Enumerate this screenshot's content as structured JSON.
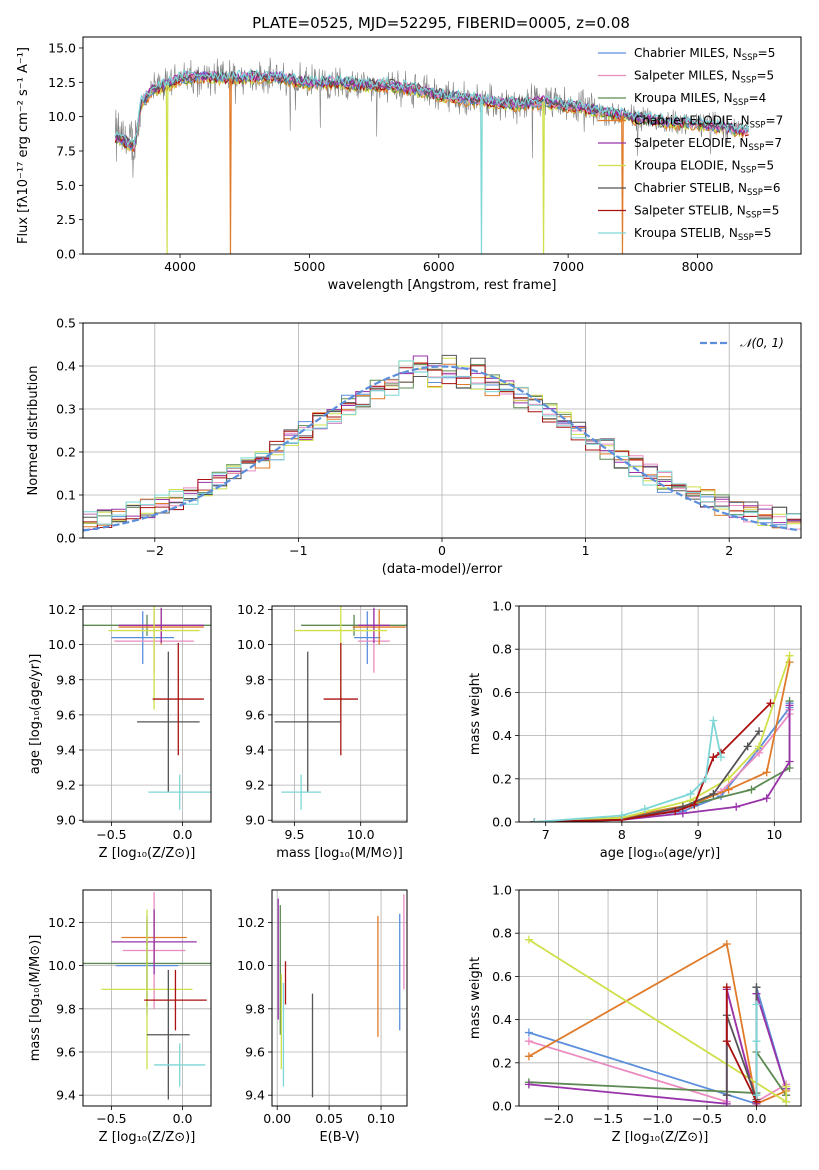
{
  "figure": {
    "title": "PLATE=0525, MJD=52295, FIBERID=0005, z=0.08"
  },
  "models": [
    {
      "name": "Chabrier MILES",
      "nssp": "5",
      "color": "#5b8fdc"
    },
    {
      "name": "Salpeter MILES",
      "nssp": "5",
      "color": "#e98bc0"
    },
    {
      "name": "Kroupa MILES",
      "nssp": "4",
      "color": "#5c8a52"
    },
    {
      "name": "Chabrier ELODIE",
      "nssp": "7",
      "color": "#e07b2a"
    },
    {
      "name": "Salpeter ELODIE",
      "nssp": "7",
      "color": "#9933aa"
    },
    {
      "name": "Kroupa ELODIE",
      "nssp": "5",
      "color": "#cfe04a"
    },
    {
      "name": "Chabrier STELIB",
      "nssp": "6",
      "color": "#555555"
    },
    {
      "name": "Salpeter STELIB",
      "nssp": "5",
      "color": "#aa1111"
    },
    {
      "name": "Kroupa STELIB",
      "nssp": "5",
      "color": "#7ed6d6"
    }
  ],
  "nssp_label": "N",
  "nssp_sub": "SSP",
  "chart_data": [
    {
      "id": "spectrum",
      "type": "line",
      "title": "PLATE=0525, MJD=52295, FIBERID=0005, z=0.08",
      "xlabel": "wavelength [Angstrom, rest frame]",
      "ylabel": "Flux [fλ10⁻¹⁷ erg cm⁻² s⁻¹ A⁻¹]",
      "xlim": [
        3250,
        8800
      ],
      "ylim": [
        0,
        15.8
      ],
      "xticks": [
        4000,
        5000,
        6000,
        7000,
        8000
      ],
      "yticks": [
        0.0,
        2.5,
        5.0,
        7.5,
        10.0,
        12.5,
        15.0
      ],
      "continuum": {
        "x": [
          3500,
          3550,
          3650,
          3700,
          3800,
          3900,
          4000,
          4200,
          4400,
          4600,
          4800,
          5000,
          5200,
          5400,
          5600,
          5800,
          6000,
          6200,
          6400,
          6600,
          6800,
          7000,
          7200,
          7400,
          7600,
          7800,
          8000,
          8200,
          8350
        ],
        "y": [
          8.5,
          8.3,
          7.8,
          11.0,
          12.0,
          12.3,
          12.8,
          12.9,
          12.8,
          12.9,
          12.8,
          12.4,
          12.5,
          12.3,
          12.3,
          12.0,
          11.6,
          11.3,
          11.1,
          10.9,
          11.1,
          10.8,
          10.5,
          10.1,
          9.8,
          9.6,
          9.5,
          9.2,
          9.0
        ]
      },
      "absorption_dips": [
        {
          "x": 3900,
          "y": 0.0
        },
        {
          "x": 4390,
          "y": 0.0
        },
        {
          "x": 6330,
          "y": 0.0
        },
        {
          "x": 6810,
          "y": 0.0
        },
        {
          "x": 7420,
          "y": 0.0
        }
      ]
    },
    {
      "id": "residuals",
      "type": "histogram",
      "xlabel": "(data-model)/error",
      "ylabel": "Normed distribution",
      "xlim": [
        -2.5,
        2.5
      ],
      "ylim": [
        0,
        0.5
      ],
      "xticks": [
        -2,
        -1,
        0,
        1,
        2
      ],
      "yticks": [
        0.0,
        0.1,
        0.2,
        0.3,
        0.4,
        0.5
      ],
      "legend": "𝒩(0, 1)",
      "reference": {
        "name": "𝒩(0, 1)",
        "color": "#5b8fdc",
        "mu": 0,
        "sigma": 1
      },
      "bin_width": 0.1
    },
    {
      "id": "age_vs_Z",
      "type": "errorbar",
      "xlabel": "Z [log₁₀(Z/Z⊙)]",
      "ylabel": "age  [log₁₀(age/yr)]",
      "xlim": [
        -0.7,
        0.2
      ],
      "ylim": [
        8.99,
        10.22
      ],
      "xticks": [
        -0.5,
        0.0
      ],
      "yticks": [
        9.0,
        9.2,
        9.4,
        9.6,
        9.8,
        10.0,
        10.2
      ],
      "points": [
        {
          "model": 0,
          "x": -0.28,
          "y": 10.04,
          "xerr": 0.22,
          "yerr": 0.15
        },
        {
          "model": 1,
          "x": -0.2,
          "y": 10.02,
          "xerr": 0.28,
          "yerr": 0.18
        },
        {
          "model": 2,
          "x": -0.25,
          "y": 10.11,
          "xerr": 0.45,
          "yerr": 0.06
        },
        {
          "model": 3,
          "x": -0.15,
          "y": 10.1,
          "xerr": 0.3,
          "yerr": 0.1
        },
        {
          "model": 4,
          "x": -0.15,
          "y": 10.11,
          "xerr": 0.3,
          "yerr": 0.1
        },
        {
          "model": 5,
          "x": -0.2,
          "y": 10.08,
          "xerr": 0.32,
          "yerr": 0.45
        },
        {
          "model": 6,
          "x": -0.1,
          "y": 9.56,
          "xerr": 0.22,
          "yerr": 0.4
        },
        {
          "model": 7,
          "x": -0.03,
          "y": 9.69,
          "xerr": 0.18,
          "yerr": 0.32
        },
        {
          "model": 8,
          "x": -0.02,
          "y": 9.16,
          "xerr": 0.22,
          "yerr": 0.1
        }
      ]
    },
    {
      "id": "age_vs_mass",
      "type": "errorbar",
      "xlabel": "mass [log₁₀(M/M⊙)]",
      "ylabel": "",
      "xlim": [
        9.33,
        10.35
      ],
      "ylim": [
        8.99,
        10.22
      ],
      "xticks": [
        9.5,
        10.0
      ],
      "yticks": [
        9.0,
        9.2,
        9.4,
        9.6,
        9.8,
        10.0,
        10.2
      ],
      "points": [
        {
          "model": 0,
          "x": 10.05,
          "y": 10.04,
          "xerr": 0.1,
          "yerr": 0.15
        },
        {
          "model": 1,
          "x": 10.1,
          "y": 10.02,
          "xerr": 0.12,
          "yerr": 0.18
        },
        {
          "model": 2,
          "x": 9.95,
          "y": 10.11,
          "xerr": 0.4,
          "yerr": 0.06
        },
        {
          "model": 3,
          "x": 10.14,
          "y": 10.1,
          "xerr": 0.2,
          "yerr": 0.1
        },
        {
          "model": 4,
          "x": 10.1,
          "y": 10.11,
          "xerr": 0.12,
          "yerr": 0.1
        },
        {
          "model": 5,
          "x": 9.85,
          "y": 10.08,
          "xerr": 0.35,
          "yerr": 0.45
        },
        {
          "model": 6,
          "x": 9.6,
          "y": 9.56,
          "xerr": 0.25,
          "yerr": 0.4
        },
        {
          "model": 7,
          "x": 9.85,
          "y": 9.69,
          "xerr": 0.13,
          "yerr": 0.32
        },
        {
          "model": 8,
          "x": 9.55,
          "y": 9.16,
          "xerr": 0.15,
          "yerr": 0.1
        }
      ]
    },
    {
      "id": "weight_vs_age",
      "type": "line",
      "xlabel": "age  [log₁₀(age/yr)]",
      "ylabel": "mass weight",
      "xlim": [
        6.65,
        10.35
      ],
      "ylim": [
        0,
        1.0
      ],
      "xticks": [
        7,
        8,
        9,
        10
      ],
      "yticks": [
        0.0,
        0.2,
        0.4,
        0.6,
        0.8,
        1.0
      ],
      "series": [
        {
          "model": 0,
          "x": [
            6.85,
            8.0,
            8.8,
            9.3,
            9.8,
            10.2,
            10.2
          ],
          "y": [
            0.0,
            0.02,
            0.05,
            0.12,
            0.34,
            0.53,
            0.55
          ]
        },
        {
          "model": 1,
          "x": [
            6.85,
            8.0,
            8.8,
            9.3,
            9.8,
            10.2,
            10.2
          ],
          "y": [
            0.0,
            0.02,
            0.06,
            0.14,
            0.32,
            0.5,
            0.52
          ]
        },
        {
          "model": 2,
          "x": [
            6.85,
            8.0,
            8.9,
            9.7,
            10.2,
            10.2
          ],
          "y": [
            0.0,
            0.02,
            0.08,
            0.15,
            0.25,
            0.56
          ]
        },
        {
          "model": 3,
          "x": [
            6.85,
            8.0,
            8.9,
            9.4,
            9.9,
            10.2
          ],
          "y": [
            0.0,
            0.02,
            0.08,
            0.15,
            0.23,
            0.74
          ]
        },
        {
          "model": 4,
          "x": [
            6.85,
            8.0,
            8.8,
            9.5,
            9.9,
            10.2,
            10.2
          ],
          "y": [
            0.0,
            0.01,
            0.04,
            0.07,
            0.11,
            0.28,
            0.54
          ]
        },
        {
          "model": 5,
          "x": [
            6.85,
            8.0,
            8.9,
            9.4,
            9.8,
            10.2
          ],
          "y": [
            0.0,
            0.02,
            0.1,
            0.2,
            0.35,
            0.77
          ]
        },
        {
          "model": 6,
          "x": [
            6.85,
            8.0,
            8.8,
            9.2,
            9.65,
            9.8
          ],
          "y": [
            0.0,
            0.01,
            0.07,
            0.13,
            0.35,
            0.42
          ]
        },
        {
          "model": 7,
          "x": [
            6.85,
            8.0,
            8.7,
            8.95,
            9.2,
            9.3,
            9.95
          ],
          "y": [
            0.0,
            0.01,
            0.05,
            0.08,
            0.3,
            0.32,
            0.55
          ]
        },
        {
          "model": 8,
          "x": [
            6.85,
            8.0,
            8.3,
            8.9,
            9.1,
            9.2,
            9.3
          ],
          "y": [
            0.0,
            0.03,
            0.06,
            0.13,
            0.2,
            0.47,
            0.3
          ]
        }
      ]
    },
    {
      "id": "mass_vs_Z",
      "type": "errorbar",
      "xlabel": "Z [log₁₀(Z/Z⊙)]",
      "ylabel": "mass [log₁₀(M/M⊙)]",
      "xlim": [
        -0.7,
        0.2
      ],
      "ylim": [
        9.35,
        10.35
      ],
      "xticks": [
        -0.5,
        0.0
      ],
      "yticks": [
        9.4,
        9.6,
        9.8,
        10.0,
        10.2
      ],
      "points": [
        {
          "model": 0,
          "x": -0.25,
          "y": 10.0,
          "xerr": 0.22,
          "yerr": 0.23
        },
        {
          "model": 1,
          "x": -0.2,
          "y": 10.07,
          "xerr": 0.22,
          "yerr": 0.27
        },
        {
          "model": 2,
          "x": -0.25,
          "y": 10.01,
          "xerr": 0.45,
          "yerr": 0.2
        },
        {
          "model": 3,
          "x": -0.2,
          "y": 10.13,
          "xerr": 0.23,
          "yerr": 0.12
        },
        {
          "model": 4,
          "x": -0.2,
          "y": 10.11,
          "xerr": 0.3,
          "yerr": 0.15
        },
        {
          "model": 5,
          "x": -0.25,
          "y": 9.89,
          "xerr": 0.32,
          "yerr": 0.37
        },
        {
          "model": 6,
          "x": -0.1,
          "y": 9.68,
          "xerr": 0.15,
          "yerr": 0.3
        },
        {
          "model": 7,
          "x": -0.05,
          "y": 9.84,
          "xerr": 0.22,
          "yerr": 0.14
        },
        {
          "model": 8,
          "x": -0.02,
          "y": 9.54,
          "xerr": 0.18,
          "yerr": 0.1
        }
      ]
    },
    {
      "id": "mass_vs_ebv",
      "type": "errorbar",
      "xlabel": "E(B-V)",
      "ylabel": "",
      "xlim": [
        -0.005,
        0.125
      ],
      "ylim": [
        9.35,
        10.35
      ],
      "xticks": [
        0.0,
        0.05,
        0.1
      ],
      "yticks": [
        9.4,
        9.6,
        9.8,
        10.0,
        10.2
      ],
      "points": [
        {
          "model": 0,
          "x": 0.118,
          "y": 9.97,
          "xerr": 0.0,
          "yerr": 0.27
        },
        {
          "model": 1,
          "x": 0.122,
          "y": 10.11,
          "xerr": 0.0,
          "yerr": 0.22
        },
        {
          "model": 2,
          "x": 0.003,
          "y": 9.98,
          "xerr": 0.0,
          "yerr": 0.3
        },
        {
          "model": 3,
          "x": 0.097,
          "y": 9.95,
          "xerr": 0.0,
          "yerr": 0.28
        },
        {
          "model": 4,
          "x": 0.001,
          "y": 10.03,
          "xerr": 0.0,
          "yerr": 0.28
        },
        {
          "model": 5,
          "x": 0.004,
          "y": 9.74,
          "xerr": 0.0,
          "yerr": 0.22
        },
        {
          "model": 6,
          "x": 0.034,
          "y": 9.63,
          "xerr": 0.0,
          "yerr": 0.24
        },
        {
          "model": 7,
          "x": 0.008,
          "y": 9.92,
          "xerr": 0.0,
          "yerr": 0.1
        },
        {
          "model": 8,
          "x": 0.006,
          "y": 9.68,
          "xerr": 0.0,
          "yerr": 0.24
        }
      ]
    },
    {
      "id": "weight_vs_Z",
      "type": "line",
      "xlabel": "Z [log₁₀(Z/Z⊙)]",
      "ylabel": "mass weight",
      "xlim": [
        -2.4,
        0.45
      ],
      "ylim": [
        0,
        1.0
      ],
      "xticks": [
        -2.0,
        -1.5,
        -1.0,
        -0.5,
        0.0
      ],
      "yticks": [
        0.0,
        0.2,
        0.4,
        0.6,
        0.8,
        1.0
      ],
      "series": [
        {
          "model": 0,
          "x": [
            -2.3,
            0.0,
            0.0,
            0.3,
            0.3
          ],
          "y": [
            0.34,
            0.01,
            0.55,
            0.08,
            0.02
          ]
        },
        {
          "model": 1,
          "x": [
            -2.3,
            -0.3,
            -0.3,
            0.0,
            0.3,
            0.3
          ],
          "y": [
            0.3,
            0.02,
            0.54,
            0.02,
            0.1,
            0.05
          ]
        },
        {
          "model": 2,
          "x": [
            -2.3,
            0.0,
            0.0,
            0.3
          ],
          "y": [
            0.11,
            0.06,
            0.25,
            0.05
          ]
        },
        {
          "model": 3,
          "x": [
            -2.3,
            -0.3,
            0.0,
            0.3
          ],
          "y": [
            0.23,
            0.75,
            0.01,
            0.07
          ]
        },
        {
          "model": 4,
          "x": [
            -2.3,
            -0.3,
            -0.3,
            0.0,
            0.0,
            0.3
          ],
          "y": [
            0.1,
            0.01,
            0.54,
            0.01,
            0.52,
            0.08
          ]
        },
        {
          "model": 5,
          "x": [
            -2.3,
            0.3,
            0.3
          ],
          "y": [
            0.77,
            0.02,
            0.09
          ]
        },
        {
          "model": 6,
          "x": [
            -0.3,
            -0.3,
            0.0,
            0.0
          ],
          "y": [
            0.05,
            0.42,
            0.03,
            0.55
          ]
        },
        {
          "model": 7,
          "x": [
            -0.3,
            -0.3,
            0.0
          ],
          "y": [
            0.55,
            0.3,
            0.02
          ]
        },
        {
          "model": 8,
          "x": [
            0.0,
            0.0,
            0.0
          ],
          "y": [
            0.47,
            0.3,
            0.05
          ]
        }
      ]
    }
  ]
}
